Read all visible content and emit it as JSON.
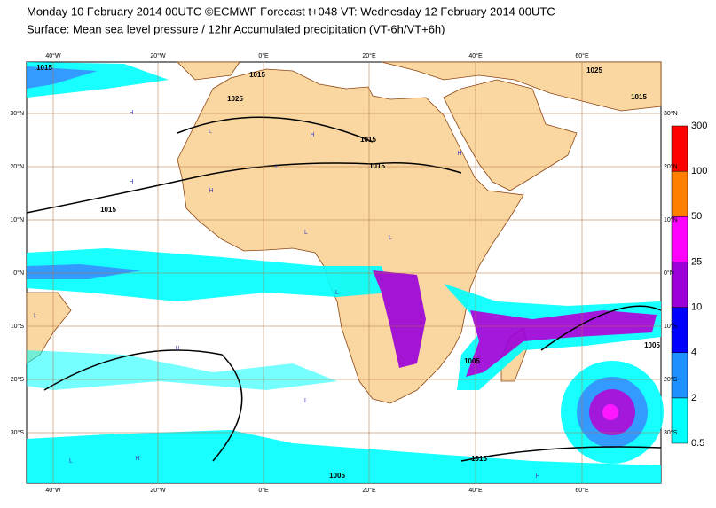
{
  "header": {
    "title": "Monday 10 February 2014 00UTC ©ECMWF Forecast t+048 VT: Wednesday 12 February 2014 00UTC",
    "subtitle": "Surface: Mean sea level pressure / 12hr Accumulated precipitation (VT-6h/VT+6h)"
  },
  "map": {
    "lon_labels": [
      "40°W",
      "20°W",
      "0°E",
      "20°E",
      "40°E",
      "60°E"
    ],
    "lat_labels": [
      "30°N",
      "20°N",
      "10°N",
      "0°N",
      "10°S",
      "20°S",
      "30°S"
    ],
    "isobar_labels": [
      "1015",
      "1015",
      "1025",
      "1015",
      "1015",
      "1015",
      "1025",
      "1015",
      "1005",
      "1005",
      "1015",
      "1005"
    ],
    "pressure_centres": [
      "H",
      "L",
      "H",
      "L",
      "H",
      "L",
      "H",
      "L",
      "L",
      "H",
      "L",
      "H",
      "L",
      "H",
      "H",
      "L"
    ]
  },
  "legend": {
    "levels": [
      0.5,
      2,
      4,
      10,
      25,
      50,
      100,
      300
    ],
    "colors": [
      "#00ffff",
      "#1e90ff",
      "#0000ff",
      "#9b00d9",
      "#ff00ff",
      "#ff8000",
      "#ff0000"
    ]
  }
}
